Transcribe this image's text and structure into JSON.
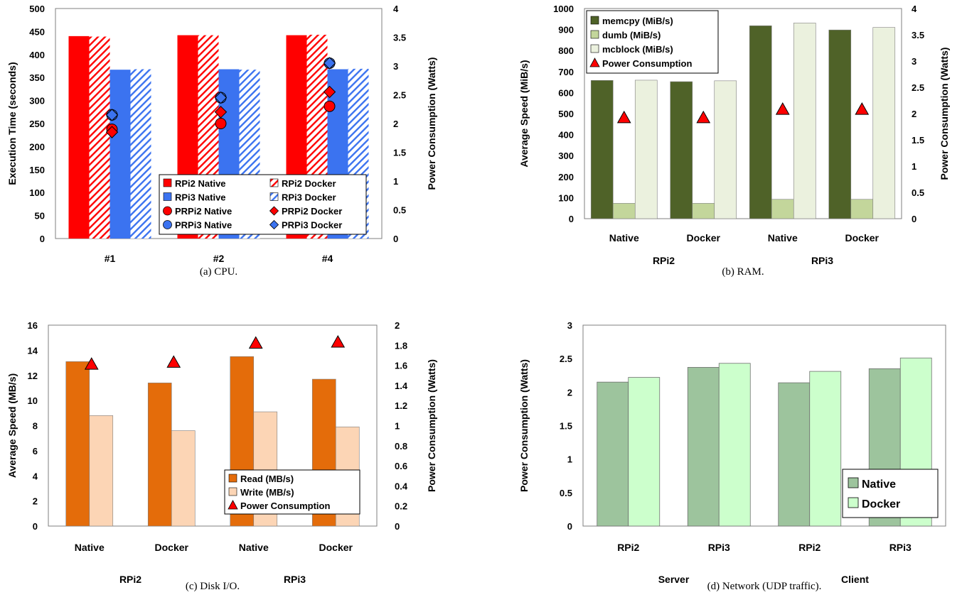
{
  "colors": {
    "rpi2": "#ff0000",
    "rpi3": "#3b73f0",
    "memcpy": "#4f6228",
    "dumb": "#c3d69b",
    "mcblock": "#ebf1de",
    "read": "#e46c0a",
    "write": "#fcd5b5",
    "net_native": "#9dc49d",
    "net_docker": "#ccffcc",
    "power": "#ff0000"
  },
  "chart_data": [
    {
      "id": "cpu",
      "type": "bar",
      "caption": "(a) CPU.",
      "categories": [
        "#1",
        "#2",
        "#4"
      ],
      "ylabel": "Execution Time (seconds)",
      "y2label": "Power Consumption (Watts)",
      "ylim": [
        0,
        500
      ],
      "y2lim": [
        0,
        4
      ],
      "yticks": [
        "0",
        "50",
        "100",
        "150",
        "200",
        "250",
        "300",
        "350",
        "400",
        "450",
        "500"
      ],
      "y2ticks": [
        "0",
        "0.5",
        "1",
        "1.5",
        "2",
        "2.5",
        "3",
        "3.5",
        "4"
      ],
      "legend": {
        "position": "bottom-right"
      },
      "series": [
        {
          "name": "RPi2 Native",
          "axis": "left",
          "values": [
            440,
            442,
            442
          ]
        },
        {
          "name": "RPi2 Docker",
          "axis": "left",
          "hatched": true,
          "values": [
            439,
            442,
            443
          ]
        },
        {
          "name": "RPi3 Native",
          "axis": "left",
          "values": [
            367,
            368,
            368
          ]
        },
        {
          "name": "RPi3 Docker",
          "axis": "left",
          "hatched": true,
          "values": [
            368,
            367,
            369
          ]
        }
      ],
      "power": [
        {
          "name": "PRPi2 Native",
          "marker": "circle",
          "color": "rpi2",
          "values": [
            1.9,
            2.0,
            2.3
          ]
        },
        {
          "name": "PRPi2 Docker",
          "marker": "diamond",
          "color": "rpi2",
          "values": [
            1.85,
            2.2,
            2.55
          ]
        },
        {
          "name": "PRPi3 Native",
          "marker": "circle",
          "color": "rpi3",
          "values": [
            2.15,
            2.45,
            3.05
          ]
        },
        {
          "name": "PRPi3 Docker",
          "marker": "diamond",
          "color": "rpi3",
          "values": [
            2.15,
            2.45,
            3.05
          ]
        }
      ]
    },
    {
      "id": "ram",
      "type": "bar",
      "caption": "(b) RAM.",
      "categories": [
        "Native",
        "Docker",
        "Native",
        "Docker"
      ],
      "groups": [
        "RPi2",
        "RPi3"
      ],
      "ylabel": "Average Speed (MiB/s)",
      "y2label": "Power Consumption (Watts)",
      "ylim": [
        0,
        1000
      ],
      "y2lim": [
        0,
        4
      ],
      "yticks": [
        "0",
        "100",
        "200",
        "300",
        "400",
        "500",
        "600",
        "700",
        "800",
        "900",
        "1000"
      ],
      "y2ticks": [
        "0",
        "0.5",
        "1",
        "1.5",
        "2",
        "2.5",
        "3",
        "3.5",
        "4"
      ],
      "legend": {
        "position": "top-left"
      },
      "series": [
        {
          "name": "memcpy (MiB/s)",
          "values": [
            658,
            652,
            918,
            898
          ]
        },
        {
          "name": "dumb (MiB/s)",
          "values": [
            73,
            73,
            92,
            92
          ]
        },
        {
          "name": "mcblock (MiB/s)",
          "values": [
            659,
            656,
            931,
            910
          ]
        }
      ],
      "power": {
        "name": "Power Consumption",
        "values": [
          1.92,
          1.92,
          2.08,
          2.08
        ]
      }
    },
    {
      "id": "disk",
      "type": "bar",
      "caption": "(c) Disk I/O.",
      "categories": [
        "Native",
        "Docker",
        "Native",
        "Docker"
      ],
      "groups": [
        "RPi2",
        "RPi3"
      ],
      "ylabel": "Average Speed (MB/s)",
      "y2label": "Power Consumption (Watts)",
      "ylim": [
        0,
        16
      ],
      "y2lim": [
        0,
        2
      ],
      "yticks": [
        "0",
        "2",
        "4",
        "6",
        "8",
        "10",
        "12",
        "14",
        "16"
      ],
      "y2ticks": [
        "0",
        "0.2",
        "0.4",
        "0.6",
        "0.8",
        "1",
        "1.2",
        "1.4",
        "1.6",
        "1.8",
        "2"
      ],
      "legend": {
        "position": "bottom-right"
      },
      "series": [
        {
          "name": "Read (MB/s)",
          "values": [
            13.1,
            11.4,
            13.5,
            11.7
          ]
        },
        {
          "name": "Write (MB/s)",
          "values": [
            8.8,
            7.6,
            9.1,
            7.9
          ]
        }
      ],
      "power": {
        "name": "Power Consumption",
        "values": [
          1.61,
          1.63,
          1.82,
          1.83
        ]
      }
    },
    {
      "id": "network",
      "type": "bar",
      "caption": "(d) Network (UDP traffic).",
      "categories": [
        "RPi2",
        "RPi3",
        "RPi2",
        "RPi3"
      ],
      "groups": [
        "Server",
        "Client"
      ],
      "ylabel": "Power Consumption (Watts)",
      "ylim": [
        0,
        3
      ],
      "yticks": [
        "0",
        "0.5",
        "1",
        "1.5",
        "2",
        "2.5",
        "3"
      ],
      "legend": {
        "position": "bottom-right"
      },
      "series": [
        {
          "name": "Native",
          "values": [
            2.15,
            2.37,
            2.14,
            2.35
          ]
        },
        {
          "name": "Docker",
          "values": [
            2.22,
            2.43,
            2.31,
            2.51
          ]
        }
      ]
    }
  ]
}
